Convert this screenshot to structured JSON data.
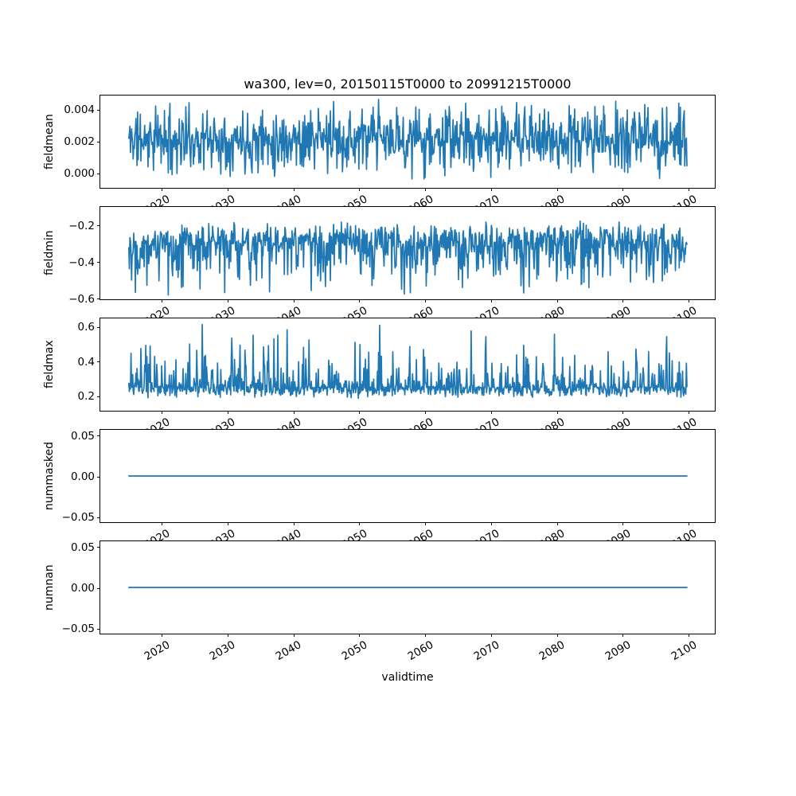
{
  "figure": {
    "title": "wa300, lev=0, 20150115T0000 to 20991215T0000",
    "background": "#ffffff",
    "line_color": "#1f77b4",
    "spine_color": "#000000",
    "grid": false,
    "legend": false
  },
  "x_axis": {
    "label": "validtime",
    "tick_labels": [
      "2020",
      "2030",
      "2040",
      "2050",
      "2060",
      "2070",
      "2080",
      "2090",
      "2100"
    ],
    "tick_values": [
      2020,
      2030,
      2040,
      2050,
      2060,
      2070,
      2080,
      2090,
      2100
    ],
    "xlim": [
      2010.7,
      2104.2
    ],
    "tick_label_rotation_deg": 30
  },
  "chart_data": [
    {
      "type": "line",
      "title": "",
      "ylabel": "fieldmean",
      "ytick_labels": [
        "0.004",
        "0.002",
        "0.000"
      ],
      "ytick_values": [
        0.004,
        0.002,
        0.0
      ],
      "ylim": [
        -0.001,
        0.0049
      ],
      "x_range": [
        2015.04,
        2099.96
      ],
      "n_points": 1020,
      "series_summary": {
        "kind": "noisy",
        "seed": 11,
        "base": 0.0021,
        "amp_up": 0.0026,
        "amp_down": 0.0026,
        "pow_up": 1.2,
        "pow_down": 1.2,
        "approx_min": -0.0005,
        "approx_max": 0.0047
      },
      "spikes": [
        {
          "year": 2053,
          "value": 0.00465
        }
      ]
    },
    {
      "type": "line",
      "title": "",
      "ylabel": "fieldmin",
      "ytick_labels": [
        "−0.2",
        "−0.4",
        "−0.6"
      ],
      "ytick_values": [
        -0.2,
        -0.4,
        -0.6
      ],
      "ylim": [
        -0.609,
        -0.096
      ],
      "x_range": [
        2015.04,
        2099.96
      ],
      "n_points": 1020,
      "series_summary": {
        "kind": "noisy",
        "seed": 22,
        "base": -0.3,
        "amp_up": 0.13,
        "amp_down": 0.29,
        "pow_up": 1.0,
        "pow_down": 1.3,
        "approx_min": -0.59,
        "approx_max": -0.17
      },
      "spikes": [
        {
          "year": 2021,
          "value": -0.585
        }
      ]
    },
    {
      "type": "line",
      "title": "",
      "ylabel": "fieldmax",
      "ytick_labels": [
        "0.6",
        "0.4",
        "0.2"
      ],
      "ytick_values": [
        0.6,
        0.4,
        0.2
      ],
      "ylim": [
        0.108,
        0.651
      ],
      "x_range": [
        2015.04,
        2099.96
      ],
      "n_points": 1020,
      "series_summary": {
        "kind": "noisy",
        "seed": 33,
        "base": 0.245,
        "amp_up": 0.375,
        "amp_down": 0.065,
        "pow_up": 2.2,
        "pow_down": 1.0,
        "approx_min": 0.18,
        "approx_max": 0.62
      },
      "spikes": [
        {
          "year": 2026.2,
          "value": 0.615
        },
        {
          "year": 2024.3,
          "value": 0.5
        }
      ]
    },
    {
      "type": "line",
      "title": "",
      "ylabel": "nummasked",
      "ytick_labels": [
        "0.05",
        "0.00",
        "−0.05"
      ],
      "ytick_values": [
        0.05,
        0.0,
        -0.05
      ],
      "ylim": [
        -0.0578,
        0.0578
      ],
      "x_range": [
        2015.04,
        2099.96
      ],
      "n_points": 1020,
      "series_summary": {
        "kind": "constant",
        "value": 0.0
      },
      "spikes": []
    },
    {
      "type": "line",
      "title": "",
      "ylabel": "numnan",
      "ytick_labels": [
        "0.05",
        "0.00",
        "−0.05"
      ],
      "ytick_values": [
        0.05,
        0.0,
        -0.05
      ],
      "ylim": [
        -0.0578,
        0.0578
      ],
      "x_range": [
        2015.04,
        2099.96
      ],
      "n_points": 1020,
      "series_summary": {
        "kind": "constant",
        "value": 0.0
      },
      "spikes": []
    }
  ]
}
